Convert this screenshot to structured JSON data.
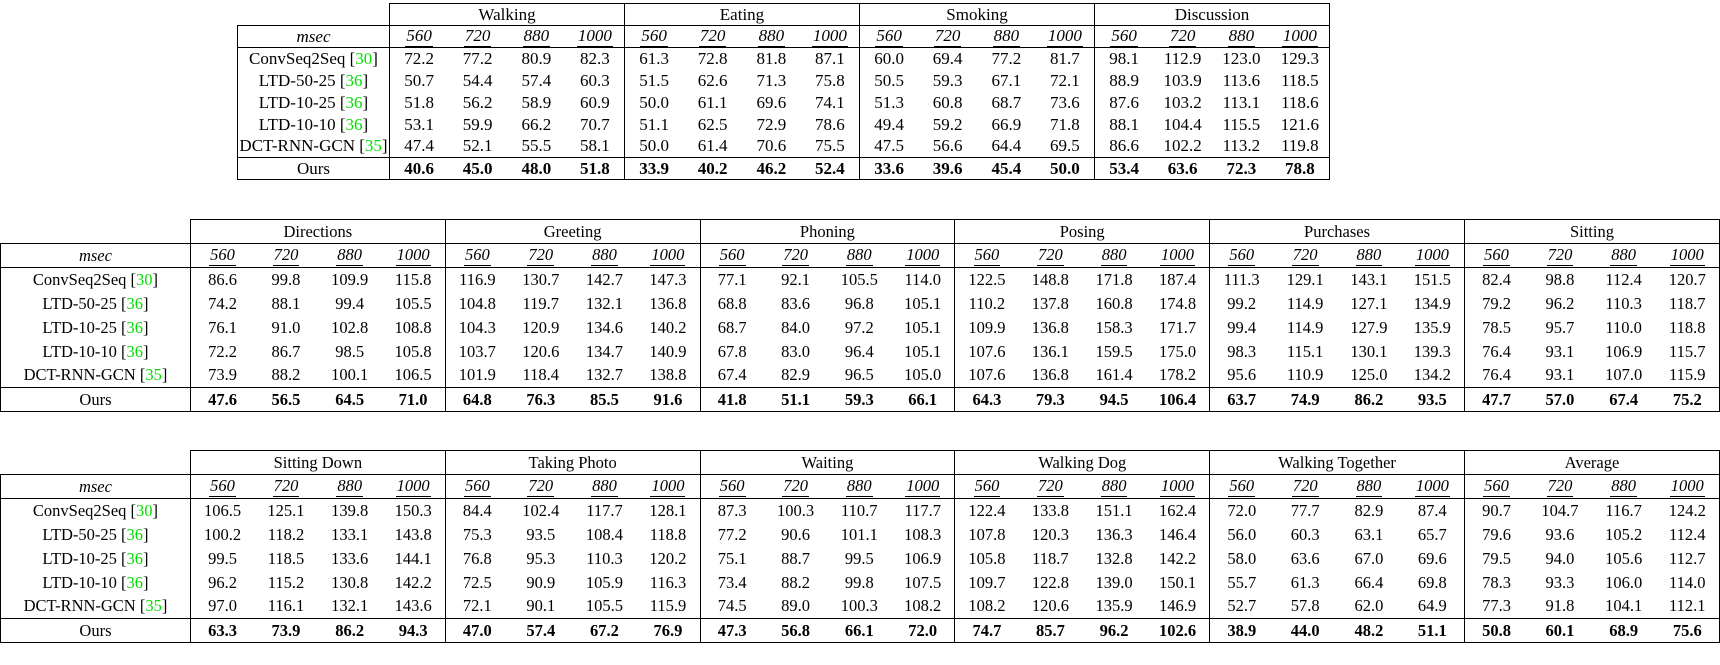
{
  "page": {
    "background": "#ffffff",
    "text_color": "#000000",
    "citation_color": "#00e000"
  },
  "msec_label": "msec",
  "time_headers": [
    "560",
    "720",
    "880",
    "1000"
  ],
  "methods": [
    {
      "label": "ConvSeq2Seq",
      "cite": "30",
      "bold_values": false
    },
    {
      "label": "LTD-50-25",
      "cite": "36",
      "bold_values": false
    },
    {
      "label": "LTD-10-25",
      "cite": "36",
      "bold_values": false
    },
    {
      "label": "LTD-10-10",
      "cite": "36",
      "bold_values": false
    },
    {
      "label": "DCT-RNN-GCN",
      "cite": "35",
      "bold_values": false
    },
    {
      "label": "Ours",
      "cite": null,
      "bold_values": true
    }
  ],
  "tables": [
    {
      "groups": [
        "Walking",
        "Eating",
        "Smoking",
        "Discussion"
      ],
      "rows": [
        [
          "72.2",
          "77.2",
          "80.9",
          "82.3",
          "61.3",
          "72.8",
          "81.8",
          "87.1",
          "60.0",
          "69.4",
          "77.2",
          "81.7",
          "98.1",
          "112.9",
          "123.0",
          "129.3"
        ],
        [
          "50.7",
          "54.4",
          "57.4",
          "60.3",
          "51.5",
          "62.6",
          "71.3",
          "75.8",
          "50.5",
          "59.3",
          "67.1",
          "72.1",
          "88.9",
          "103.9",
          "113.6",
          "118.5"
        ],
        [
          "51.8",
          "56.2",
          "58.9",
          "60.9",
          "50.0",
          "61.1",
          "69.6",
          "74.1",
          "51.3",
          "60.8",
          "68.7",
          "73.6",
          "87.6",
          "103.2",
          "113.1",
          "118.6"
        ],
        [
          "53.1",
          "59.9",
          "66.2",
          "70.7",
          "51.1",
          "62.5",
          "72.9",
          "78.6",
          "49.4",
          "59.2",
          "66.9",
          "71.8",
          "88.1",
          "104.4",
          "115.5",
          "121.6"
        ],
        [
          "47.4",
          "52.1",
          "55.5",
          "58.1",
          "50.0",
          "61.4",
          "70.6",
          "75.5",
          "47.5",
          "56.6",
          "64.4",
          "69.5",
          "86.6",
          "102.2",
          "113.2",
          "119.8"
        ],
        [
          "40.6",
          "45.0",
          "48.0",
          "51.8",
          "33.9",
          "40.2",
          "46.2",
          "52.4",
          "33.6",
          "39.6",
          "45.4",
          "50.0",
          "53.4",
          "63.6",
          "72.3",
          "78.8"
        ]
      ]
    },
    {
      "groups": [
        "Directions",
        "Greeting",
        "Phoning",
        "Posing",
        "Purchases",
        "Sitting"
      ],
      "rows": [
        [
          "86.6",
          "99.8",
          "109.9",
          "115.8",
          "116.9",
          "130.7",
          "142.7",
          "147.3",
          "77.1",
          "92.1",
          "105.5",
          "114.0",
          "122.5",
          "148.8",
          "171.8",
          "187.4",
          "111.3",
          "129.1",
          "143.1",
          "151.5",
          "82.4",
          "98.8",
          "112.4",
          "120.7"
        ],
        [
          "74.2",
          "88.1",
          "99.4",
          "105.5",
          "104.8",
          "119.7",
          "132.1",
          "136.8",
          "68.8",
          "83.6",
          "96.8",
          "105.1",
          "110.2",
          "137.8",
          "160.8",
          "174.8",
          "99.2",
          "114.9",
          "127.1",
          "134.9",
          "79.2",
          "96.2",
          "110.3",
          "118.7"
        ],
        [
          "76.1",
          "91.0",
          "102.8",
          "108.8",
          "104.3",
          "120.9",
          "134.6",
          "140.2",
          "68.7",
          "84.0",
          "97.2",
          "105.1",
          "109.9",
          "136.8",
          "158.3",
          "171.7",
          "99.4",
          "114.9",
          "127.9",
          "135.9",
          "78.5",
          "95.7",
          "110.0",
          "118.8"
        ],
        [
          "72.2",
          "86.7",
          "98.5",
          "105.8",
          "103.7",
          "120.6",
          "134.7",
          "140.9",
          "67.8",
          "83.0",
          "96.4",
          "105.1",
          "107.6",
          "136.1",
          "159.5",
          "175.0",
          "98.3",
          "115.1",
          "130.1",
          "139.3",
          "76.4",
          "93.1",
          "106.9",
          "115.7"
        ],
        [
          "73.9",
          "88.2",
          "100.1",
          "106.5",
          "101.9",
          "118.4",
          "132.7",
          "138.8",
          "67.4",
          "82.9",
          "96.5",
          "105.0",
          "107.6",
          "136.8",
          "161.4",
          "178.2",
          "95.6",
          "110.9",
          "125.0",
          "134.2",
          "76.4",
          "93.1",
          "107.0",
          "115.9"
        ],
        [
          "47.6",
          "56.5",
          "64.5",
          "71.0",
          "64.8",
          "76.3",
          "85.5",
          "91.6",
          "41.8",
          "51.1",
          "59.3",
          "66.1",
          "64.3",
          "79.3",
          "94.5",
          "106.4",
          "63.7",
          "74.9",
          "86.2",
          "93.5",
          "47.7",
          "57.0",
          "67.4",
          "75.2"
        ]
      ]
    },
    {
      "groups": [
        "Sitting Down",
        "Taking Photo",
        "Waiting",
        "Walking Dog",
        "Walking Together",
        "Average"
      ],
      "rows": [
        [
          "106.5",
          "125.1",
          "139.8",
          "150.3",
          "84.4",
          "102.4",
          "117.7",
          "128.1",
          "87.3",
          "100.3",
          "110.7",
          "117.7",
          "122.4",
          "133.8",
          "151.1",
          "162.4",
          "72.0",
          "77.7",
          "82.9",
          "87.4",
          "90.7",
          "104.7",
          "116.7",
          "124.2"
        ],
        [
          "100.2",
          "118.2",
          "133.1",
          "143.8",
          "75.3",
          "93.5",
          "108.4",
          "118.8",
          "77.2",
          "90.6",
          "101.1",
          "108.3",
          "107.8",
          "120.3",
          "136.3",
          "146.4",
          "56.0",
          "60.3",
          "63.1",
          "65.7",
          "79.6",
          "93.6",
          "105.2",
          "112.4"
        ],
        [
          "99.5",
          "118.5",
          "133.6",
          "144.1",
          "76.8",
          "95.3",
          "110.3",
          "120.2",
          "75.1",
          "88.7",
          "99.5",
          "106.9",
          "105.8",
          "118.7",
          "132.8",
          "142.2",
          "58.0",
          "63.6",
          "67.0",
          "69.6",
          "79.5",
          "94.0",
          "105.6",
          "112.7"
        ],
        [
          "96.2",
          "115.2",
          "130.8",
          "142.2",
          "72.5",
          "90.9",
          "105.9",
          "116.3",
          "73.4",
          "88.2",
          "99.8",
          "107.5",
          "109.7",
          "122.8",
          "139.0",
          "150.1",
          "55.7",
          "61.3",
          "66.4",
          "69.8",
          "78.3",
          "93.3",
          "106.0",
          "114.0"
        ],
        [
          "97.0",
          "116.1",
          "132.1",
          "143.6",
          "72.1",
          "90.1",
          "105.5",
          "115.9",
          "74.5",
          "89.0",
          "100.3",
          "108.2",
          "108.2",
          "120.6",
          "135.9",
          "146.9",
          "52.7",
          "57.8",
          "62.0",
          "64.9",
          "77.3",
          "91.8",
          "104.1",
          "112.1"
        ],
        [
          "63.3",
          "73.9",
          "86.2",
          "94.3",
          "47.0",
          "57.4",
          "67.2",
          "76.9",
          "47.3",
          "56.8",
          "66.1",
          "72.0",
          "74.7",
          "85.7",
          "96.2",
          "102.6",
          "38.9",
          "44.0",
          "48.2",
          "51.1",
          "50.8",
          "60.1",
          "68.9",
          "75.6"
        ]
      ]
    }
  ]
}
